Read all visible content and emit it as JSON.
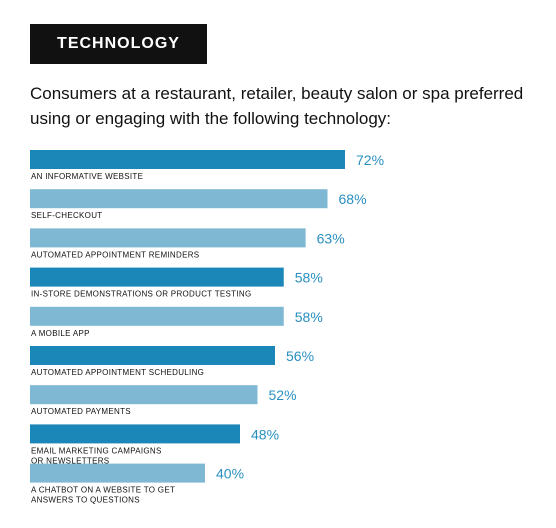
{
  "header": {
    "badge": "TECHNOLOGY",
    "subtitle": "Consumers at a restaurant, retailer, beauty salon or spa preferred using or engaging with the following technology:"
  },
  "chart_data": {
    "type": "bar",
    "orientation": "horizontal",
    "categories": [
      [
        "AN INFORMATIVE WEBSITE"
      ],
      [
        "SELF-CHECKOUT"
      ],
      [
        "AUTOMATED APPOINTMENT REMINDERS"
      ],
      [
        "IN-STORE DEMONSTRATIONS OR PRODUCT TESTING"
      ],
      [
        "A MOBILE APP"
      ],
      [
        "AUTOMATED APPOINTMENT SCHEDULING"
      ],
      [
        "AUTOMATED PAYMENTS"
      ],
      [
        "EMAIL MARKETING CAMPAIGNS",
        "OR NEWSLETTERS"
      ],
      [
        "A CHATBOT ON A WEBSITE TO GET",
        "ANSWERS TO QUESTIONS"
      ]
    ],
    "values": [
      72,
      68,
      63,
      58,
      58,
      56,
      52,
      48,
      40
    ],
    "value_labels": [
      "72%",
      "68%",
      "63%",
      "58%",
      "58%",
      "56%",
      "52%",
      "48%",
      "40%"
    ],
    "colors": {
      "bar_dark": "#1a87b8",
      "bar_light": "#7fb8d3",
      "value_text": "#2a8fc0"
    },
    "grid": false,
    "legend": "none"
  }
}
